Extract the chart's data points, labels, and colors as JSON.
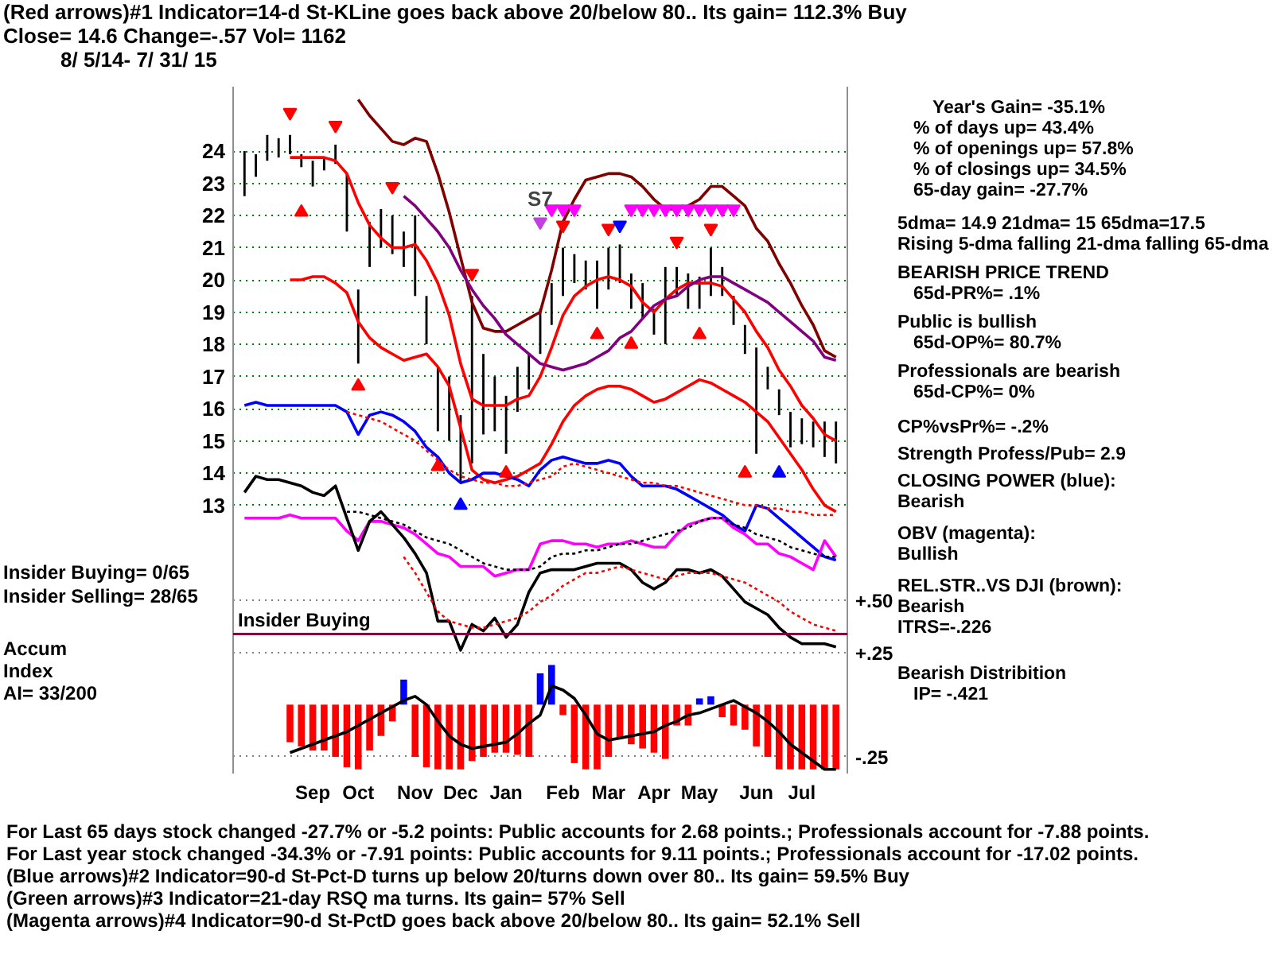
{
  "chart_data": {
    "type": "bar",
    "title": "(Red arrows)#1 Indicator=14-d St-KLine goes back above 20/below 80.. Its gain= 112.3% Buy",
    "subtitle": "Close=  14.6   Change=-.57  Vol= 1162",
    "categories": [
      null,
      null,
      null,
      null,
      null,
      null,
      "Sep",
      null,
      null,
      null,
      "Oct",
      null,
      null,
      null,
      null,
      "Nov",
      null,
      null,
      null,
      "Dec",
      null,
      null,
      null,
      "Jan",
      null,
      null,
      null,
      null,
      "Feb",
      null,
      null,
      null,
      "Mar",
      null,
      null,
      null,
      "Apr",
      null,
      null,
      null,
      "May",
      null,
      null,
      null,
      null,
      "Jun",
      null,
      null,
      null,
      "Jul",
      null,
      null,
      null
    ],
    "ylim": [
      4.67,
      26
    ],
    "yticks": [
      13,
      14,
      15,
      16,
      17,
      18,
      19,
      20,
      21,
      22,
      23,
      24
    ],
    "y2lim": [
      -0.33,
      2.96
    ],
    "y2ticks": [
      {
        "value": 0.5,
        "label": "+.50"
      },
      {
        "value": 0.25,
        "label": "+.25"
      },
      {
        "value": -0.25,
        "label": "-.25"
      }
    ],
    "grid": "y",
    "series": [
      {
        "color": "#000000",
        "base": [
          22.6,
          23.2,
          23.7,
          23.8,
          23.9,
          23.5,
          22.9,
          23.4,
          23.6,
          21.5,
          17.4,
          20.4,
          21.0,
          20.8,
          20.4,
          19.5,
          18.0,
          15.3,
          15.0,
          13.7,
          14.3,
          15.2,
          15.3,
          14.6,
          15.9,
          16.6,
          17.7,
          18.6,
          19.5,
          19.9,
          19.7,
          19.1,
          19.7,
          19.9,
          19.1,
          18.8,
          18.3,
          18.0,
          19.5,
          19.1,
          19.1,
          19.5,
          19.5,
          18.6,
          17.7,
          14.6,
          16.6,
          15.8,
          14.8,
          14.9,
          14.8,
          14.5,
          14.3
        ],
        "values": [
          1.4,
          0.7,
          0.8,
          0.6,
          0.6,
          0.4,
          0.8,
          0.4,
          0.6,
          1.8,
          2.3,
          1.4,
          1.2,
          1.2,
          1.1,
          2.5,
          1.5,
          2.0,
          2.0,
          2.1,
          5.2,
          2.5,
          1.7,
          1.8,
          1.4,
          1.1,
          1.4,
          1.3,
          1.5,
          0.9,
          0.9,
          1.5,
          1.3,
          1.2,
          1.1,
          1.1,
          0.8,
          2.4,
          0.9,
          1.1,
          1.0,
          1.5,
          0.9,
          0.9,
          0.9,
          3.3,
          0.7,
          0.8,
          1.1,
          0.8,
          0.8,
          1.1,
          1.3
        ]
      },
      {
        "type": "line",
        "color": "#800000",
        "values": [
          null,
          null,
          null,
          null,
          null,
          null,
          null,
          null,
          null,
          null,
          25.6,
          25.1,
          24.7,
          24.3,
          24.2,
          24.4,
          24.3,
          23.3,
          22.1,
          20.7,
          19.3,
          18.5,
          18.4,
          18.4,
          18.6,
          18.8,
          19.0,
          20.3,
          21.8,
          22.5,
          23.1,
          23.2,
          23.3,
          23.3,
          23.2,
          22.9,
          22.5,
          22.2,
          22.2,
          22.3,
          22.5,
          22.9,
          22.9,
          22.6,
          22.3,
          21.6,
          21.2,
          20.5,
          19.9,
          19.2,
          18.6,
          17.8,
          17.6
        ]
      },
      {
        "type": "line",
        "color": "#ff0000",
        "values": [
          null,
          null,
          null,
          null,
          23.8,
          23.8,
          23.8,
          23.8,
          23.7,
          23.3,
          22.4,
          21.7,
          21.3,
          21.0,
          21.0,
          21.1,
          20.6,
          19.9,
          18.9,
          17.4,
          16.3,
          16.1,
          16.1,
          16.1,
          16.3,
          16.4,
          17.0,
          17.9,
          18.9,
          19.5,
          19.8,
          20.0,
          20.1,
          20.0,
          19.8,
          19.3,
          19.0,
          19.4,
          19.7,
          19.9,
          19.9,
          19.9,
          19.8,
          19.4,
          19.0,
          18.4,
          17.9,
          17.2,
          16.7,
          16.1,
          15.7,
          15.2,
          15.0
        ]
      },
      {
        "type": "line",
        "color": "#ff0000",
        "values": [
          null,
          null,
          null,
          null,
          20.0,
          20.0,
          20.1,
          20.1,
          19.9,
          19.6,
          18.7,
          18.2,
          17.9,
          17.7,
          17.5,
          17.6,
          17.7,
          17.3,
          16.7,
          15.4,
          14.1,
          13.8,
          13.7,
          13.8,
          13.9,
          14.1,
          14.3,
          14.9,
          15.6,
          16.1,
          16.4,
          16.6,
          16.7,
          16.7,
          16.6,
          16.4,
          16.2,
          16.3,
          16.5,
          16.7,
          16.9,
          16.8,
          16.6,
          16.4,
          16.2,
          15.9,
          15.6,
          15.1,
          14.6,
          14.1,
          13.5,
          13.0,
          12.8
        ]
      },
      {
        "type": "line",
        "color": "#800080",
        "values": [
          null,
          null,
          null,
          null,
          null,
          null,
          null,
          null,
          null,
          null,
          null,
          null,
          null,
          null,
          22.6,
          22.3,
          21.9,
          21.5,
          21.0,
          20.3,
          19.7,
          19.2,
          18.8,
          18.3,
          18.0,
          17.7,
          17.4,
          17.3,
          17.2,
          17.3,
          17.4,
          17.6,
          17.8,
          18.2,
          18.4,
          18.8,
          19.2,
          19.4,
          19.5,
          19.8,
          20.0,
          20.1,
          20.1,
          19.9,
          19.7,
          19.5,
          19.3,
          19.0,
          18.7,
          18.4,
          18.1,
          17.6,
          17.5
        ]
      },
      {
        "type": "line",
        "color": "#0000ff",
        "values": [
          16.1,
          16.2,
          16.1,
          16.1,
          16.1,
          16.1,
          16.1,
          16.1,
          16.1,
          15.9,
          15.2,
          15.8,
          15.9,
          15.8,
          15.6,
          15.3,
          14.8,
          14.5,
          14.0,
          13.7,
          13.8,
          14.0,
          14.0,
          13.9,
          13.8,
          13.6,
          14.1,
          14.4,
          14.5,
          14.4,
          14.3,
          14.3,
          14.4,
          14.3,
          13.9,
          13.6,
          13.6,
          13.6,
          13.5,
          13.3,
          13.1,
          12.9,
          12.7,
          12.4,
          12.2,
          13.0,
          12.9,
          12.6,
          12.3,
          12.0,
          11.7,
          11.4,
          11.3
        ]
      },
      {
        "type": "line",
        "color": "#ff00ff",
        "values": [
          12.6,
          12.6,
          12.6,
          12.6,
          12.7,
          12.6,
          12.6,
          12.6,
          12.6,
          12.2,
          11.9,
          12.5,
          12.5,
          12.4,
          12.3,
          12.1,
          11.8,
          11.5,
          11.4,
          11.1,
          11.1,
          11.1,
          10.8,
          10.9,
          11.0,
          11.0,
          11.8,
          11.9,
          11.9,
          11.8,
          11.8,
          11.7,
          11.8,
          11.8,
          11.9,
          11.8,
          11.7,
          11.7,
          12.1,
          12.4,
          12.5,
          12.6,
          12.6,
          12.3,
          12.1,
          11.8,
          11.8,
          11.5,
          11.4,
          11.2,
          11.0,
          11.9,
          11.4
        ]
      },
      {
        "type": "line",
        "color": "#000000",
        "values": [
          13.4,
          13.9,
          13.8,
          13.8,
          13.7,
          13.6,
          13.4,
          13.3,
          13.6,
          12.6,
          11.6,
          12.5,
          12.8,
          12.4,
          12.0,
          11.5,
          10.9,
          9.4,
          9.4,
          8.5,
          9.3,
          9.1,
          9.5,
          8.9,
          9.3,
          10.3,
          10.9,
          11.0,
          11.0,
          11.0,
          11.1,
          11.2,
          11.2,
          11.2,
          11.0,
          10.6,
          10.4,
          10.6,
          11.0,
          11.0,
          10.9,
          11.0,
          10.8,
          10.4,
          10.0,
          9.8,
          9.6,
          9.2,
          8.9,
          8.7,
          8.7,
          8.7,
          8.6
        ]
      },
      {
        "type": "line",
        "color": "#ff0000",
        "line_style": "dotted",
        "values": [
          null,
          null,
          null,
          null,
          null,
          null,
          null,
          null,
          null,
          15.9,
          15.8,
          15.7,
          15.6,
          15.4,
          15.2,
          15.0,
          14.7,
          14.4,
          14.1,
          13.9,
          13.8,
          13.7,
          13.7,
          13.6,
          13.6,
          13.7,
          13.8,
          13.9,
          14.2,
          14.3,
          14.2,
          14.1,
          14.0,
          13.9,
          13.8,
          13.7,
          13.7,
          13.6,
          13.6,
          13.5,
          13.4,
          13.3,
          13.2,
          13.1,
          13.0,
          13.0,
          12.9,
          12.9,
          12.8,
          12.8,
          12.7,
          12.7,
          12.7
        ]
      },
      {
        "type": "line",
        "color": "#000000",
        "line_style": "dotted",
        "values": [
          null,
          null,
          null,
          null,
          null,
          null,
          null,
          null,
          null,
          12.8,
          12.8,
          12.7,
          12.6,
          12.5,
          12.4,
          12.2,
          12.0,
          11.9,
          11.8,
          11.6,
          11.4,
          11.2,
          11.1,
          11.0,
          11.0,
          11.0,
          11.1,
          11.4,
          11.5,
          11.5,
          11.6,
          11.6,
          11.7,
          11.8,
          11.8,
          11.9,
          12.0,
          12.1,
          12.2,
          12.3,
          12.5,
          12.6,
          12.6,
          12.4,
          12.3,
          12.1,
          12.0,
          11.9,
          11.7,
          11.6,
          11.5,
          11.4,
          11.4
        ]
      },
      {
        "type": "line",
        "color": "#ff0000",
        "line_style": "dotted",
        "values": [
          null,
          null,
          null,
          null,
          null,
          null,
          null,
          null,
          null,
          null,
          null,
          null,
          null,
          null,
          11.4,
          10.9,
          10.3,
          9.7,
          9.4,
          9.3,
          9.2,
          9.2,
          9.3,
          9.4,
          9.5,
          9.7,
          10.0,
          10.2,
          10.5,
          10.7,
          10.9,
          10.9,
          11.0,
          11.1,
          11.0,
          10.9,
          10.8,
          10.7,
          10.8,
          10.9,
          10.9,
          10.9,
          10.8,
          10.7,
          10.6,
          10.4,
          10.2,
          10.0,
          9.7,
          9.5,
          9.3,
          9.2,
          9.1
        ]
      },
      {
        "type": "bar",
        "axis": "y2",
        "values": [
          null,
          null,
          null,
          null,
          -0.18,
          -0.2,
          -0.22,
          -0.22,
          -0.25,
          -0.3,
          -0.31,
          -0.22,
          -0.15,
          -0.08,
          0.12,
          -0.25,
          -0.3,
          -0.31,
          -0.31,
          -0.31,
          -0.27,
          -0.25,
          -0.23,
          -0.23,
          -0.24,
          -0.25,
          0.15,
          0.19,
          -0.05,
          -0.28,
          -0.31,
          -0.31,
          -0.25,
          -0.16,
          -0.19,
          -0.21,
          -0.23,
          -0.26,
          -0.1,
          -0.1,
          0.03,
          0.04,
          -0.06,
          -0.1,
          -0.12,
          -0.2,
          -0.25,
          -0.31,
          -0.31,
          -0.31,
          -0.31,
          -0.31,
          -0.31
        ],
        "colors": [
          "#ff0000",
          "#ff0000",
          "#ff0000",
          "#ff0000",
          "#ff0000",
          "#ff0000",
          "#ff0000",
          "#ff0000",
          "#ff0000",
          "#ff0000",
          "#ff0000",
          "#ff0000",
          "#ff0000",
          "#ff0000",
          "#0000ff",
          "#ff0000",
          "#ff0000",
          "#ff0000",
          "#ff0000",
          "#ff0000",
          "#ff0000",
          "#ff0000",
          "#ff0000",
          "#ff0000",
          "#ff0000",
          "#ff0000",
          "#0000ff",
          "#0000ff",
          "#ff0000",
          "#ff0000",
          "#ff0000",
          "#ff0000",
          "#ff0000",
          "#ff0000",
          "#ff0000",
          "#ff0000",
          "#ff0000",
          "#ff0000",
          "#ff0000",
          "#ff0000",
          "#0000ff",
          "#0000ff",
          "#ff0000",
          "#ff0000",
          "#ff0000",
          "#ff0000",
          "#ff0000",
          "#ff0000",
          "#ff0000",
          "#ff0000",
          "#ff0000",
          "#ff0000",
          "#ff0000"
        ]
      },
      {
        "type": "line",
        "axis": "y2",
        "color": "#000000",
        "values": [
          null,
          null,
          null,
          null,
          -0.23,
          -0.21,
          -0.19,
          -0.17,
          -0.15,
          -0.13,
          -0.1,
          -0.07,
          -0.04,
          -0.01,
          0.02,
          0.04,
          0.0,
          -0.08,
          -0.15,
          -0.19,
          -0.21,
          -0.2,
          -0.19,
          -0.18,
          -0.14,
          -0.09,
          -0.05,
          0.09,
          0.07,
          0.03,
          -0.05,
          -0.14,
          -0.17,
          -0.16,
          -0.15,
          -0.14,
          -0.13,
          -0.1,
          -0.08,
          -0.05,
          -0.04,
          -0.02,
          0.0,
          0.02,
          -0.01,
          -0.04,
          -0.08,
          -0.13,
          -0.19,
          -0.23,
          -0.27,
          -0.31,
          -0.31
        ]
      },
      {
        "type": "scatter",
        "color": "#ff0000",
        "marker": "triangle",
        "values": [
          null,
          null,
          null,
          null,
          null,
          22.1,
          null,
          null,
          null,
          null,
          16.7,
          null,
          null,
          null,
          null,
          null,
          null,
          14.2,
          null,
          null,
          null,
          null,
          null,
          14.0,
          null,
          null,
          null,
          null,
          null,
          null,
          null,
          18.3,
          null,
          null,
          18.0,
          null,
          null,
          null,
          null,
          null,
          18.3,
          null,
          null,
          null,
          14.0,
          null,
          null,
          null,
          null,
          null,
          null,
          null,
          null
        ]
      },
      {
        "type": "scatter",
        "color": "#ff0000",
        "values": [
          null,
          null,
          null,
          null,
          25.2,
          null,
          null,
          null,
          24.8,
          null,
          null,
          null,
          null,
          22.9,
          null,
          null,
          null,
          null,
          null,
          null,
          20.2,
          null,
          null,
          null,
          null,
          null,
          null,
          null,
          21.7,
          null,
          null,
          null,
          21.6,
          null,
          null,
          null,
          null,
          null,
          21.2,
          null,
          null,
          21.6,
          null,
          null,
          null,
          null,
          null,
          null,
          null,
          null,
          null,
          null,
          null
        ]
      },
      {
        "type": "scatter",
        "color": "#0000ff",
        "marker": "triangle",
        "values": [
          null,
          null,
          null,
          null,
          null,
          null,
          null,
          null,
          null,
          null,
          null,
          null,
          null,
          null,
          null,
          null,
          null,
          null,
          null,
          13.0,
          null,
          null,
          null,
          null,
          null,
          null,
          null,
          null,
          null,
          null,
          null,
          null,
          null,
          null,
          null,
          null,
          null,
          null,
          null,
          null,
          null,
          null,
          null,
          null,
          null,
          null,
          null,
          14.0,
          null,
          null,
          null,
          null,
          null
        ]
      },
      {
        "type": "scatter",
        "color": "#0000ff",
        "values": [
          null,
          null,
          null,
          null,
          null,
          null,
          null,
          null,
          null,
          null,
          null,
          null,
          null,
          null,
          null,
          null,
          null,
          null,
          null,
          null,
          null,
          null,
          null,
          null,
          null,
          null,
          null,
          null,
          null,
          null,
          null,
          null,
          null,
          21.7,
          null,
          null,
          null,
          null,
          null,
          null,
          null,
          null,
          null,
          null,
          null,
          null,
          null,
          null,
          null,
          null,
          null,
          null,
          null
        ]
      },
      {
        "type": "scatter",
        "color": "#ff00ff",
        "values": [
          null,
          null,
          null,
          null,
          null,
          null,
          null,
          null,
          null,
          null,
          null,
          null,
          null,
          null,
          null,
          null,
          null,
          null,
          null,
          null,
          null,
          null,
          null,
          null,
          null,
          null,
          null,
          22.2,
          22.2,
          22.2,
          null,
          null,
          null,
          null,
          22.2,
          22.2,
          22.2,
          22.2,
          22.2,
          22.2,
          22.2,
          22.2,
          22.2,
          22.2,
          null,
          null,
          null,
          null,
          null,
          null,
          null,
          null,
          null
        ]
      },
      {
        "type": "scatter",
        "name": "S7",
        "color": "#c040e0",
        "values": [
          null,
          null,
          null,
          null,
          null,
          null,
          null,
          null,
          null,
          null,
          null,
          null,
          null,
          null,
          null,
          null,
          null,
          null,
          null,
          null,
          null,
          null,
          null,
          null,
          null,
          null,
          21.8,
          null,
          null,
          null,
          null,
          null,
          null,
          null,
          null,
          null,
          null,
          null,
          null,
          null,
          null,
          null,
          null,
          null,
          null,
          null,
          null,
          null,
          null,
          null,
          null,
          null,
          null
        ]
      }
    ],
    "ref_lines": [
      {
        "axis": "y",
        "value": 9.0,
        "label": "Insider Buying",
        "color": "#800040"
      }
    ],
    "annotations": [
      "8/ 5/14- 7/ 31/ 15",
      "Year's Gain= -35.1%",
      "% of days up= 43.4%",
      "% of openings up= 57.8%",
      "% of closings up= 34.5%",
      "65-day gain= -27.7%",
      "5dma= 14.9 21dma= 15 65dma=17.5",
      "Rising 5-dma falling 21-dma falling 65-dma",
      "BEARISH PRICE TREND",
      "65d-PR%= .1%",
      "Public is bullish",
      "65d-OP%= 80.7%",
      "Professionals are bearish",
      "65d-CP%= 0%",
      "CP%vsPr%= -.2%",
      "Strength Profess/Pub= 2.9",
      "CLOSING POWER (blue):",
      "Bearish",
      "OBV (magenta):",
      "Bullish",
      "REL.STR..VS DJI (brown):",
      "Bearish",
      "ITRS=-.226",
      "Bearish Distribition",
      "IP= -.421",
      "Insider Buying= 0/65",
      "Insider Selling= 28/65",
      "Accum",
      "Index",
      "AI= 33/200",
      "For Last 65 days stock changed -27.7% or -5.2 points:  Public accounts for  2.68 points.;  Professionals account for -7.88 points.",
      "For Last year stock changed -34.3% or -7.91 points:  Public accounts for  9.11 points.;  Professionals account for -17.02 points.",
      "(Blue arrows)#2 Indicator=90-d St-Pct-D turns up below 20/turns down over 80.. Its gain= 59.5% Buy",
      "(Green arrows)#3 Indicator=21-day RSQ ma turns. Its gain= 57% Sell",
      "(Magenta arrows)#4 Indicator=90-d St-PctD goes back above 20/below 80.. Its gain= 52.1% Sell"
    ]
  }
}
